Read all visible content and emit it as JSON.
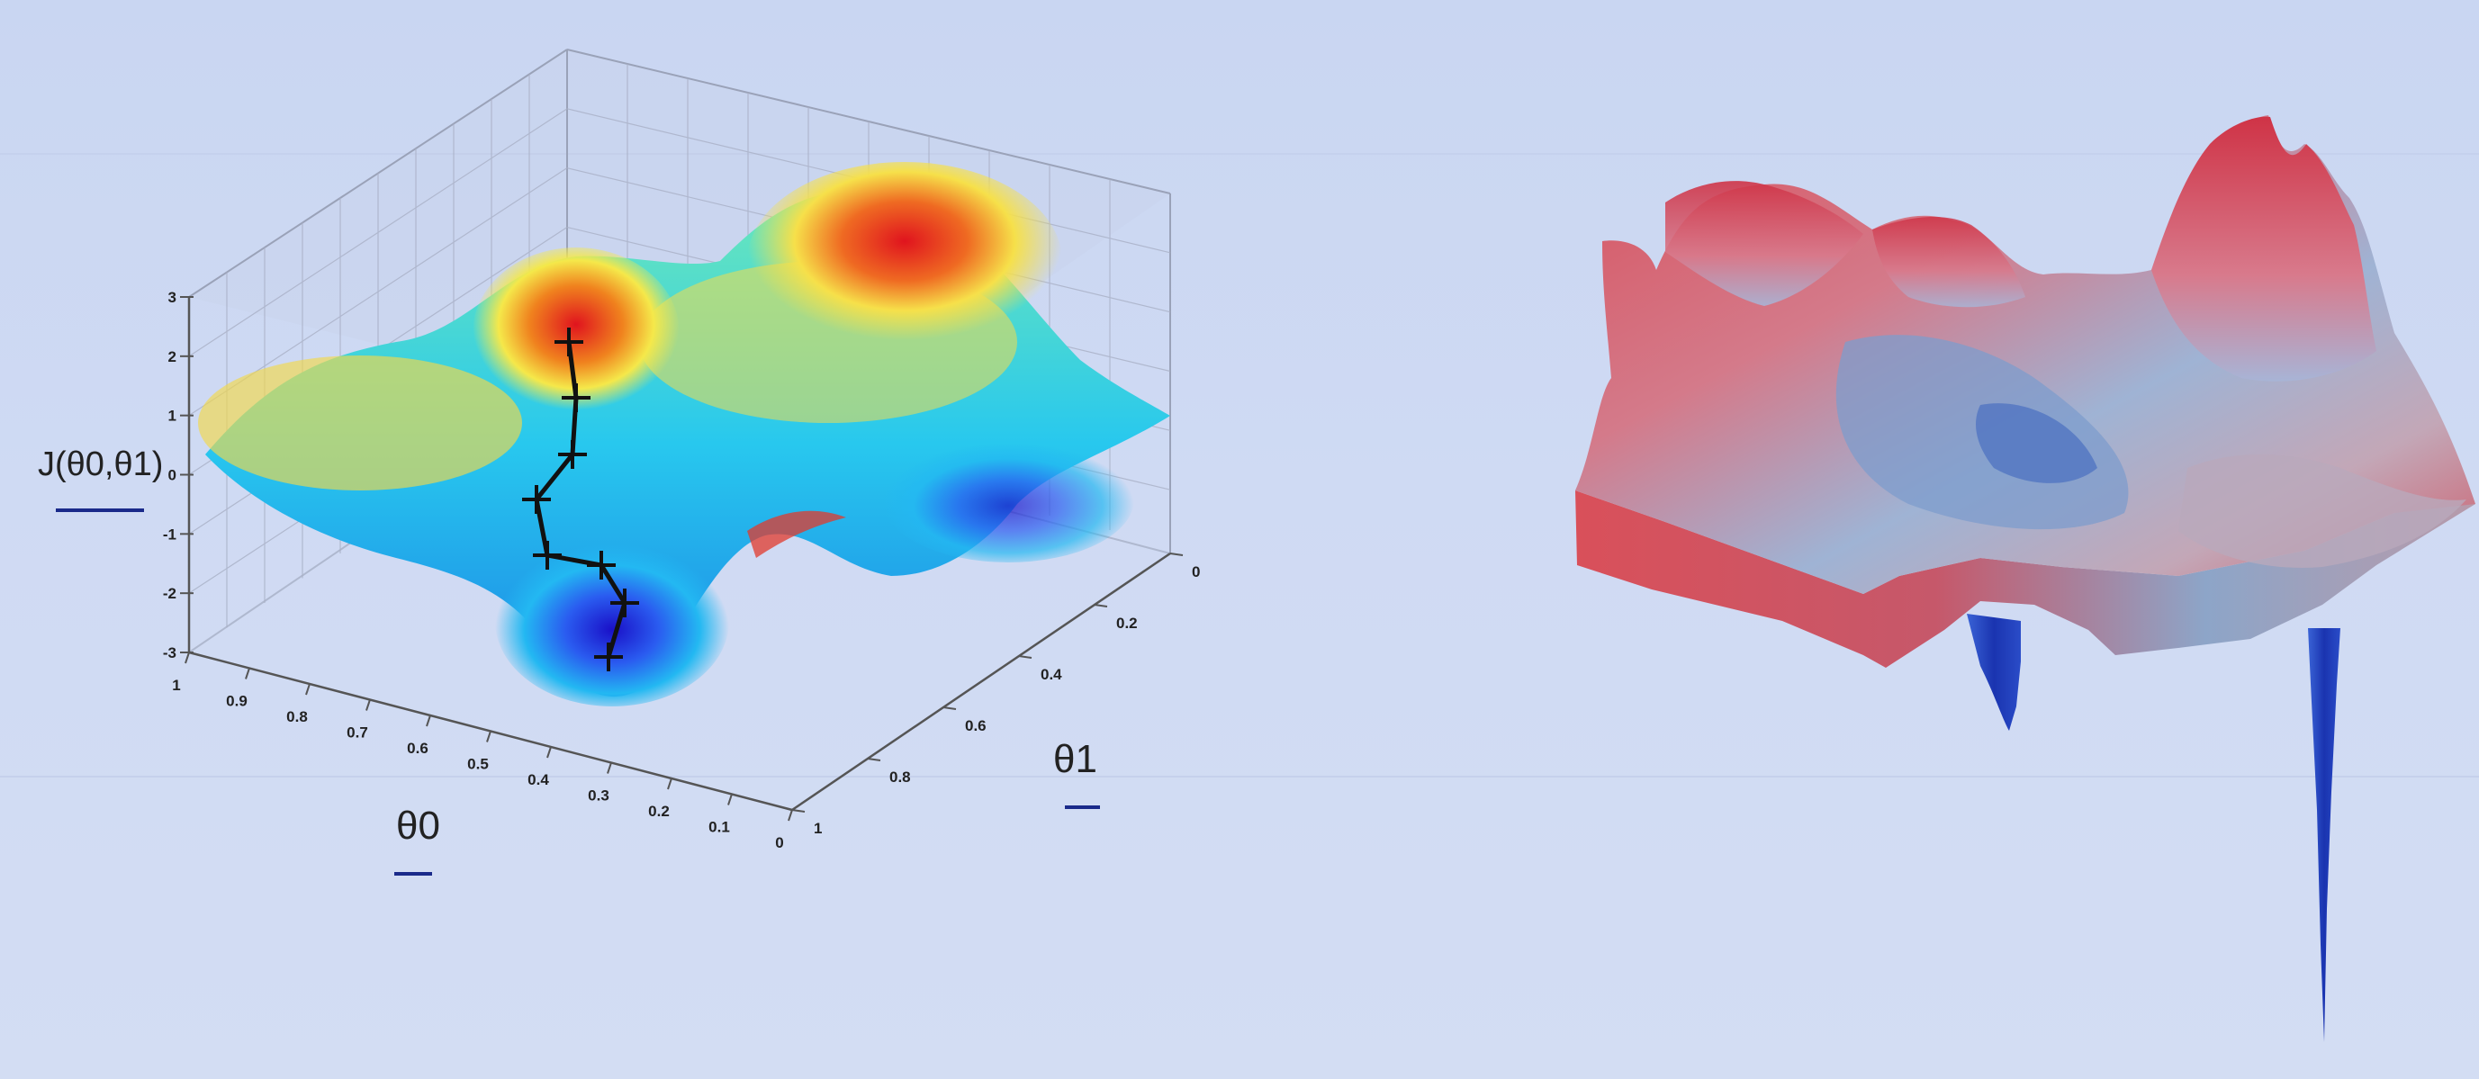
{
  "chart_data": [
    {
      "type": "surface",
      "zlabel": "J(θ0,θ1)",
      "xlabel": "θ0",
      "ylabel": "θ1",
      "zlim": [
        -3,
        3
      ],
      "xlim": [
        0,
        1
      ],
      "ylim": [
        0,
        1
      ],
      "z_ticks": [
        "3",
        "2",
        "1",
        "0",
        "-1",
        "-2",
        "-3"
      ],
      "theta0_ticks": [
        "1",
        "0.9",
        "0.8",
        "0.7",
        "0.6",
        "0.5",
        "0.4",
        "0.3",
        "0.2",
        "0.1",
        "0"
      ],
      "theta1_ticks": [
        "0",
        "0.2",
        "0.4",
        "0.6",
        "0.8",
        "1"
      ],
      "colormap": [
        "#1a1ad6",
        "#00c8f0",
        "#8af0a0",
        "#f5e84a",
        "#f0821e",
        "#e0141e"
      ],
      "grid": true,
      "descent_path": {
        "steps": 9,
        "color": "#111111"
      }
    },
    {
      "type": "surface",
      "grid": false,
      "colormap": [
        "#1b3fb8",
        "#8fb0d8",
        "#c9c4d6",
        "#e06d7a",
        "#c8283c"
      ]
    }
  ]
}
